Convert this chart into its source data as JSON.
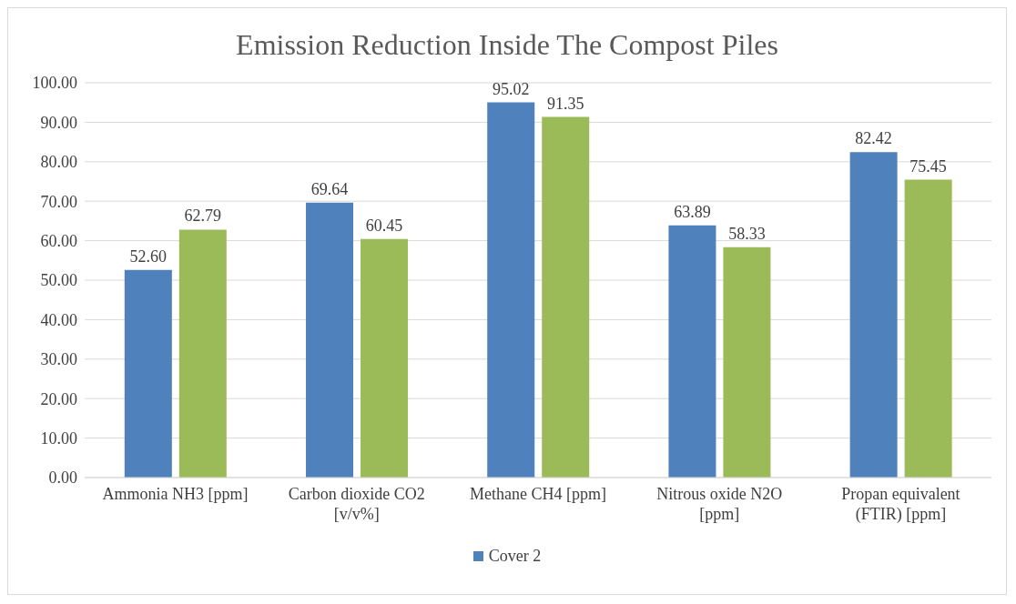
{
  "chart_data": {
    "type": "bar",
    "title": "Emission Reduction Inside The Compost Piles",
    "categories": [
      "Ammonia NH3 [ppm]",
      "Carbon dioxide CO2 [v/v%]",
      "Methane CH4 [ppm]",
      "Nitrous oxide N2O [ppm]",
      "Propan equivalent (FTIR) [ppm]"
    ],
    "series": [
      {
        "name": "Cover 2",
        "color": "#4f81bd",
        "values": [
          52.6,
          69.64,
          95.02,
          63.89,
          82.42
        ],
        "value_labels": [
          "52.60",
          "69.64",
          "95.02",
          "63.89",
          "82.42"
        ]
      },
      {
        "color": "#9bbb59",
        "values": [
          62.79,
          60.45,
          91.35,
          58.33,
          75.45
        ],
        "value_labels": [
          "62.79",
          "60.45",
          "91.35",
          "58.33",
          "75.45"
        ]
      }
    ],
    "ylim": [
      0,
      100
    ],
    "yticks": [
      {
        "value": 0,
        "label": "0.00"
      },
      {
        "value": 10,
        "label": "10.00"
      },
      {
        "value": 20,
        "label": "20.00"
      },
      {
        "value": 30,
        "label": "30.00"
      },
      {
        "value": 40,
        "label": "40.00"
      },
      {
        "value": 50,
        "label": "50.00"
      },
      {
        "value": 60,
        "label": "60.00"
      },
      {
        "value": 70,
        "label": "70.00"
      },
      {
        "value": 80,
        "label": "80.00"
      },
      {
        "value": 90,
        "label": "90.00"
      },
      {
        "value": 100,
        "label": "100.00"
      }
    ],
    "grid": "y",
    "legend": "bottom"
  }
}
